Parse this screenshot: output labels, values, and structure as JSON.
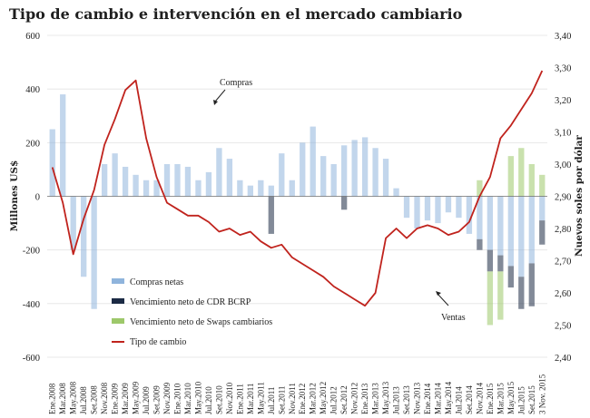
{
  "chart_data": {
    "type": "bar",
    "title": "Tipo de cambio e intervención en el mercado cambiario",
    "ylabel": "Millones US$",
    "y2label": "Nuevos soles por dólar",
    "ylim": [
      -600,
      600
    ],
    "y2lim": [
      2.4,
      3.4
    ],
    "yticks": [
      "600",
      "400",
      "200",
      "0",
      "-200",
      "-400",
      "-600"
    ],
    "y2ticks": [
      "3,40",
      "3,30",
      "3,20",
      "3,10",
      "3,00",
      "2,90",
      "2,80",
      "2,70",
      "2,60",
      "2,50",
      "2,40"
    ],
    "grid": true,
    "legend_position": "bottom-left",
    "x_categories": [
      "Ene.2008",
      "Mar.2008",
      "May.2008",
      "Jul.2008",
      "Set.2008",
      "Nov.2008",
      "Ene.2009",
      "Mar.2009",
      "May.2009",
      "Jul.2009",
      "Set.2009",
      "Nov.2009",
      "Ene.2010",
      "Mar.2010",
      "May.2010",
      "Jul.2010",
      "Set.2010",
      "Nov.2010",
      "Ene.2011",
      "Mar.2011",
      "May.2011",
      "Jul.2011",
      "Set.2011",
      "Nov.2011",
      "Ene.2012",
      "Mar.2012",
      "May.2012",
      "Jul.2012",
      "Set.2012",
      "Nov.2012",
      "Ene.2013",
      "Mar.2013",
      "May.2013",
      "Jul.2013",
      "Set.2013",
      "Nov.2013",
      "Ene.2014",
      "Mar.2014",
      "May.2014",
      "Jul.2014",
      "Set.2014",
      "Nov.2014",
      "Ene.2015",
      "Mar.2015",
      "May.2015",
      "Jul.2015",
      "Set.2015",
      "3 Nov. 2015"
    ],
    "series": [
      {
        "name": "Compras netas",
        "type": "bar",
        "color": "#8fb4dc",
        "values": [
          250,
          380,
          -200,
          -300,
          -420,
          120,
          160,
          110,
          80,
          60,
          60,
          120,
          120,
          110,
          60,
          90,
          180,
          140,
          60,
          40,
          60,
          40,
          160,
          60,
          200,
          260,
          150,
          120,
          190,
          210,
          220,
          180,
          140,
          30,
          -80,
          -120,
          -90,
          -100,
          -60,
          -80,
          -140,
          -160,
          -200,
          -220,
          -260,
          -300,
          -250,
          -90
        ]
      },
      {
        "name": "Vencimiento neto de CDR BCRP",
        "type": "bar",
        "color": "#1b2a44",
        "values": [
          0,
          0,
          0,
          0,
          0,
          0,
          0,
          0,
          0,
          0,
          0,
          0,
          0,
          0,
          0,
          0,
          0,
          0,
          0,
          0,
          0,
          -140,
          0,
          0,
          0,
          0,
          0,
          0,
          -50,
          0,
          0,
          0,
          0,
          0,
          0,
          0,
          0,
          0,
          0,
          0,
          0,
          -40,
          -80,
          -60,
          -80,
          -120,
          -160,
          -90
        ]
      },
      {
        "name": "Vencimiento neto de Swaps cambiarios",
        "type": "bar",
        "color": "#9dc86a",
        "values": [
          0,
          0,
          0,
          0,
          0,
          0,
          0,
          0,
          0,
          0,
          0,
          0,
          0,
          0,
          0,
          0,
          0,
          0,
          0,
          0,
          0,
          0,
          0,
          0,
          0,
          0,
          0,
          0,
          0,
          0,
          0,
          0,
          0,
          0,
          0,
          0,
          0,
          0,
          0,
          0,
          0,
          60,
          -200,
          -180,
          150,
          180,
          120,
          80
        ]
      },
      {
        "name": "Tipo de cambio",
        "type": "line",
        "axis": "right",
        "color": "#c0231d",
        "values": [
          2.99,
          2.88,
          2.72,
          2.83,
          2.92,
          3.06,
          3.14,
          3.23,
          3.26,
          3.08,
          2.96,
          2.88,
          2.86,
          2.84,
          2.84,
          2.82,
          2.79,
          2.8,
          2.78,
          2.79,
          2.76,
          2.74,
          2.75,
          2.71,
          2.69,
          2.67,
          2.65,
          2.62,
          2.6,
          2.58,
          2.56,
          2.6,
          2.77,
          2.8,
          2.77,
          2.8,
          2.81,
          2.8,
          2.78,
          2.79,
          2.82,
          2.9,
          2.96,
          3.08,
          3.12,
          3.17,
          3.22,
          3.29
        ]
      }
    ],
    "annotations": [
      "Compras",
      "Ventas"
    ]
  }
}
